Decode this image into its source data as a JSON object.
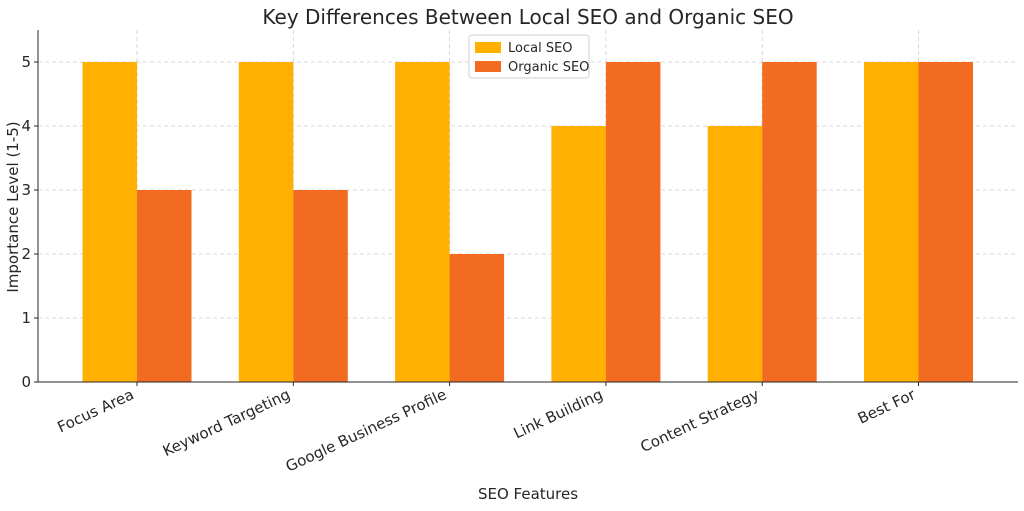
{
  "chart_data": {
    "type": "bar",
    "title": "Key Differences Between Local SEO and Organic SEO",
    "xlabel": "SEO Features",
    "ylabel": "Importance Level (1-5)",
    "categories": [
      "Focus Area",
      "Keyword Targeting",
      "Google Business Profile",
      "Link Building",
      "Content Strategy",
      "Best For"
    ],
    "series": [
      {
        "name": "Local SEO",
        "color": "#FFB000",
        "values": [
          5,
          5,
          5,
          4,
          4,
          5
        ]
      },
      {
        "name": "Organic SEO",
        "color": "#F26B21",
        "values": [
          3,
          3,
          2,
          5,
          5,
          5
        ]
      }
    ],
    "ylim": [
      0,
      5.5
    ],
    "yticks": [
      0,
      1,
      2,
      3,
      4,
      5
    ],
    "grid": true,
    "legend_position": "top-center"
  }
}
